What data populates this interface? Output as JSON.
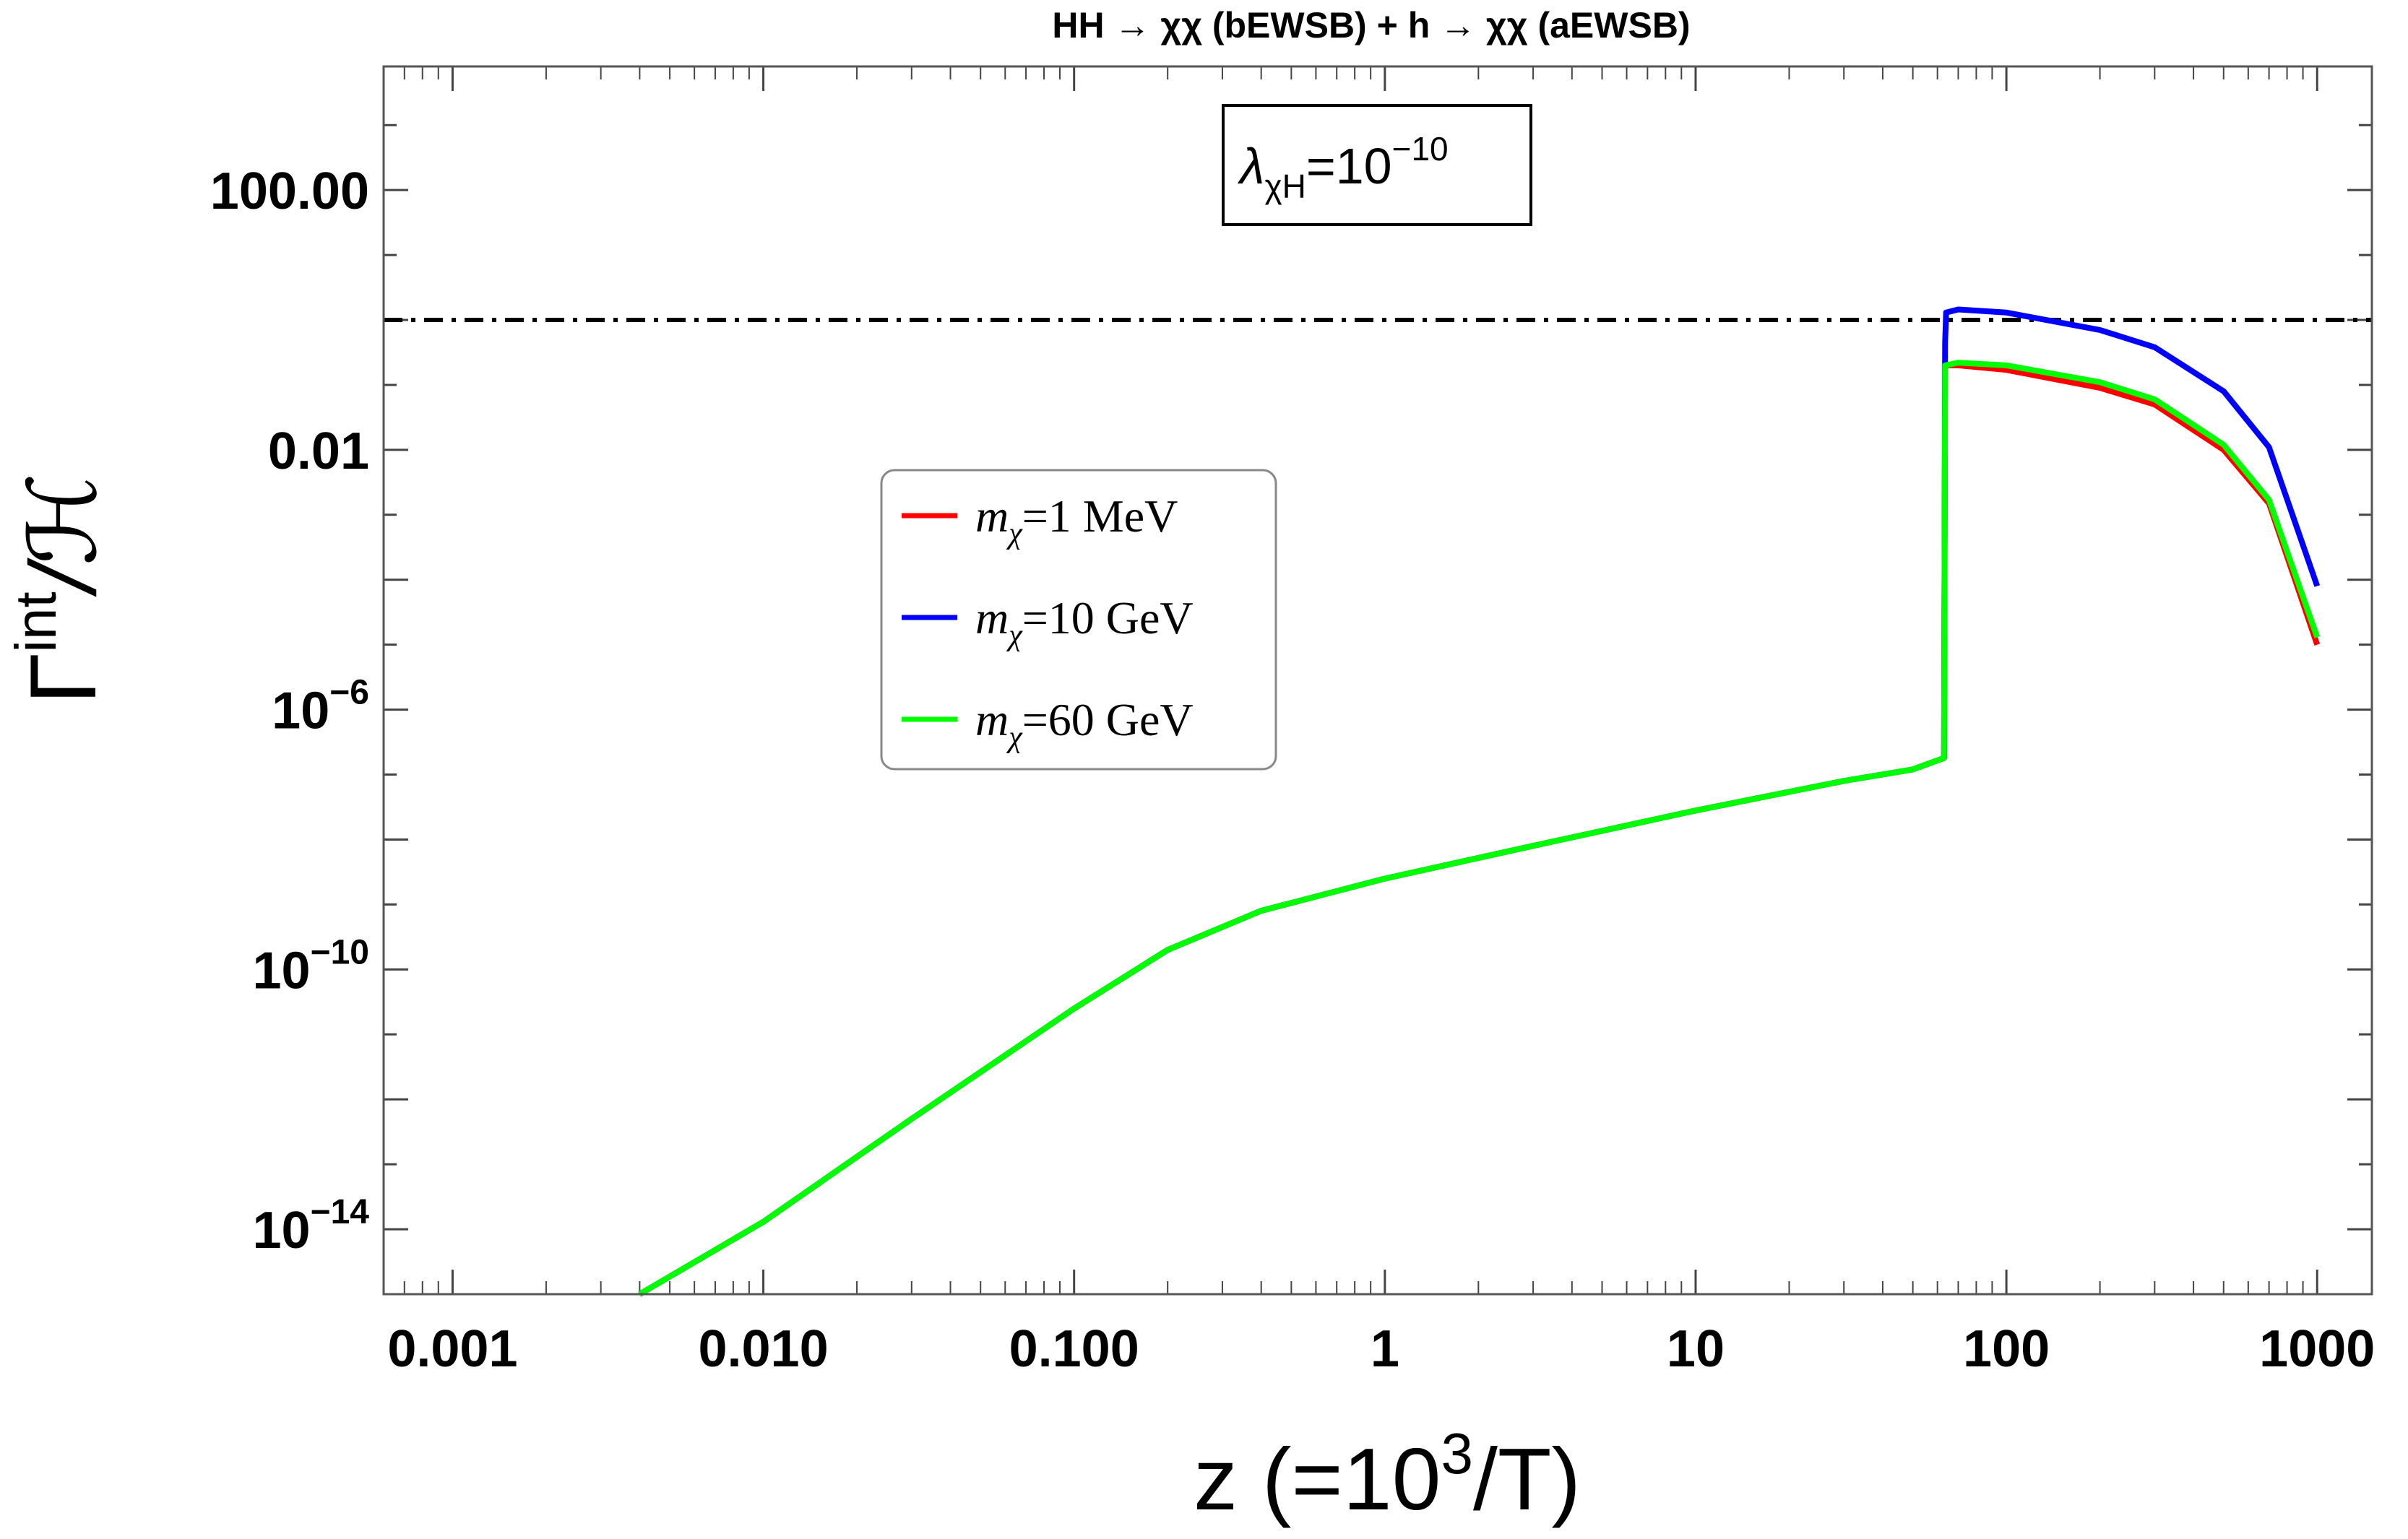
{
  "chart_data": {
    "type": "line",
    "title": "HH → χχ (bEWSB) + h → χχ (aEWSB)",
    "xlabel": {
      "base": "z (=10",
      "sup": "3",
      "tail": "/T)"
    },
    "ylabel": {
      "base": "Γ",
      "sup": "int",
      "tail": "/ℋ"
    },
    "x_scale": "log",
    "y_scale": "log",
    "xlim": [
      0.0006,
      1500
    ],
    "ylim": [
      1e-15,
      8000
    ],
    "x_ticks": [
      {
        "value": 0.001,
        "label": "0.001"
      },
      {
        "value": 0.01,
        "label": "0.010"
      },
      {
        "value": 0.1,
        "label": "0.100"
      },
      {
        "value": 1,
        "label": "1"
      },
      {
        "value": 10,
        "label": "10"
      },
      {
        "value": 100,
        "label": "100"
      },
      {
        "value": 1000,
        "label": "1000"
      }
    ],
    "y_ticks": [
      {
        "value": 1e-14,
        "base": "10",
        "exp": "−14"
      },
      {
        "value": 1e-10,
        "base": "10",
        "exp": "−10"
      },
      {
        "value": 1e-06,
        "base": "10",
        "exp": "−6"
      },
      {
        "value": 0.01,
        "base": "0.01",
        "exp": ""
      },
      {
        "value": 100,
        "base": "100.00",
        "exp": ""
      }
    ],
    "reference_line": {
      "y": 1,
      "style": "dash-dot",
      "color": "#000000"
    },
    "annotation": {
      "base": "λ",
      "sub": "χH",
      "mid": "=10",
      "sup": "−10"
    },
    "legend_position": "center-left",
    "series": [
      {
        "name": "mχ=1 MeV",
        "sym": "m",
        "sub": "χ",
        "rest": "=1 MeV",
        "color": "#ff0000",
        "points": [
          [
            0.004,
            1e-15
          ],
          [
            0.01,
            1.3e-14
          ],
          [
            0.03,
            5e-13
          ],
          [
            0.1,
            2.5e-11
          ],
          [
            0.2,
            2e-10
          ],
          [
            0.4,
            8e-10
          ],
          [
            1,
            2.5e-09
          ],
          [
            3,
            8e-09
          ],
          [
            10,
            2.8e-08
          ],
          [
            30,
            8e-08
          ],
          [
            50,
            1.2e-07
          ],
          [
            63,
            1.8e-07
          ],
          [
            63.5,
            0.2
          ],
          [
            70,
            0.2
          ],
          [
            100,
            0.17
          ],
          [
            200,
            0.09
          ],
          [
            300,
            0.05
          ],
          [
            500,
            0.01
          ],
          [
            700,
            0.0015
          ],
          [
            1000,
            1e-05
          ]
        ]
      },
      {
        "name": "mχ=10 GeV",
        "sym": "m",
        "sub": "χ",
        "rest": "=10 GeV",
        "color": "#0000ff",
        "points": [
          [
            0.004,
            1e-15
          ],
          [
            0.01,
            1.3e-14
          ],
          [
            0.03,
            5e-13
          ],
          [
            0.1,
            2.5e-11
          ],
          [
            0.2,
            2e-10
          ],
          [
            0.4,
            8e-10
          ],
          [
            1,
            2.5e-09
          ],
          [
            3,
            8e-09
          ],
          [
            10,
            2.8e-08
          ],
          [
            30,
            8e-08
          ],
          [
            50,
            1.2e-07
          ],
          [
            63,
            1.8e-07
          ],
          [
            63.5,
            0.45
          ],
          [
            64,
            1.3
          ],
          [
            70,
            1.45
          ],
          [
            100,
            1.3
          ],
          [
            200,
            0.7
          ],
          [
            300,
            0.38
          ],
          [
            500,
            0.08
          ],
          [
            700,
            0.011
          ],
          [
            1000,
            8e-05
          ]
        ]
      },
      {
        "name": "mχ=60 GeV",
        "sym": "m",
        "sub": "χ",
        "rest": "=60 GeV",
        "color": "#00ff00",
        "points": [
          [
            0.004,
            1e-15
          ],
          [
            0.01,
            1.3e-14
          ],
          [
            0.03,
            5e-13
          ],
          [
            0.1,
            2.5e-11
          ],
          [
            0.2,
            2e-10
          ],
          [
            0.4,
            8e-10
          ],
          [
            1,
            2.5e-09
          ],
          [
            3,
            8e-09
          ],
          [
            10,
            2.8e-08
          ],
          [
            30,
            8e-08
          ],
          [
            50,
            1.2e-07
          ],
          [
            63,
            1.8e-07
          ],
          [
            63.5,
            0.2
          ],
          [
            70,
            0.22
          ],
          [
            100,
            0.2
          ],
          [
            200,
            0.11
          ],
          [
            300,
            0.06
          ],
          [
            500,
            0.012
          ],
          [
            700,
            0.0017
          ],
          [
            1000,
            1.3e-05
          ]
        ]
      }
    ]
  }
}
